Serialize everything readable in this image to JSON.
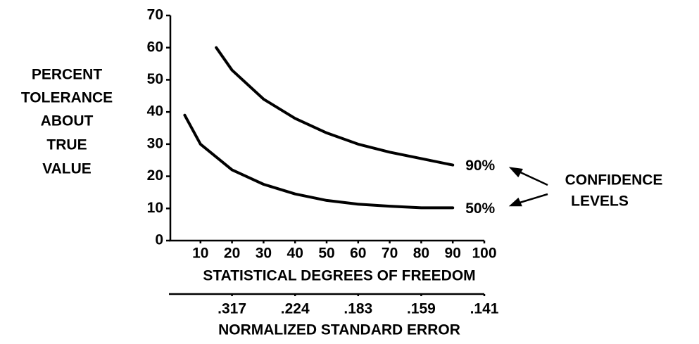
{
  "chart_data": {
    "type": "line",
    "ylabel": [
      "PERCENT",
      "TOLERANCE",
      "ABOUT",
      "TRUE",
      "VALUE"
    ],
    "xlabel": "STATISTICAL DEGREES OF FREEDOM",
    "x2label": "NORMALIZED STANDARD ERROR",
    "annotation": [
      "CONFIDENCE",
      "LEVELS"
    ],
    "xlim": [
      0,
      100
    ],
    "xticks": [
      10,
      20,
      30,
      40,
      50,
      60,
      70,
      80,
      90,
      100
    ],
    "x2ticks": [
      {
        "value": 20,
        "label": ".317"
      },
      {
        "value": 40,
        "label": ".224"
      },
      {
        "value": 60,
        "label": ".183"
      },
      {
        "value": 80,
        "label": ".159"
      },
      {
        "value": 100,
        "label": ".141"
      }
    ],
    "ylim": [
      0,
      70
    ],
    "yticks": [
      0,
      10,
      20,
      30,
      40,
      50,
      60,
      70
    ],
    "series": [
      {
        "name": "90%",
        "color": "#000000",
        "x": [
          15,
          20,
          30,
          40,
          50,
          60,
          70,
          80,
          90
        ],
        "values": [
          60,
          53,
          44,
          38,
          33.5,
          30,
          27.5,
          25.5,
          23.5
        ]
      },
      {
        "name": "50%",
        "color": "#000000",
        "x": [
          5,
          10,
          20,
          30,
          40,
          50,
          60,
          70,
          80,
          90
        ],
        "values": [
          39,
          30,
          22,
          17.5,
          14.5,
          12.5,
          11.3,
          10.7,
          10.2,
          10.2
        ]
      }
    ]
  }
}
